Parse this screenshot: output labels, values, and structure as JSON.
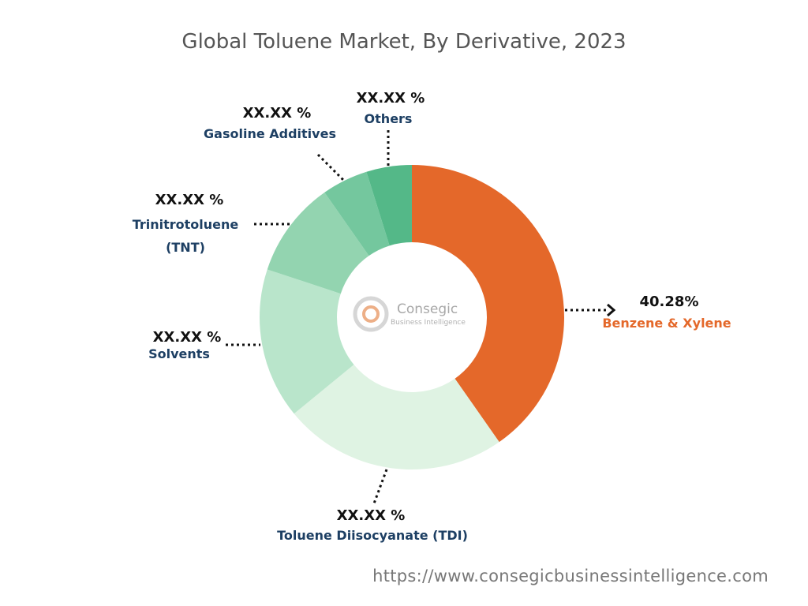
{
  "chart_data": {
    "type": "donut",
    "title": "Global Toluene Market, By Derivative, 2023",
    "categories": [
      "Benzene & Xylene",
      "Toluene Diisocyanate (TDI)",
      "Solvents",
      "Trinitrotoluene (TNT)",
      "Gasoline Additives",
      "Others"
    ],
    "values": [
      40.28,
      23.8,
      16,
      10.2,
      4.9,
      4.82
    ],
    "value_labels": [
      "40.28%",
      "XX.XX %",
      "XX.XX %",
      "XX.XX %",
      "XX.XX %",
      "XX.XX %"
    ],
    "colors": [
      "#e4682a",
      "#dff3e3",
      "#b9e5cb",
      "#93d4b0",
      "#74c79e",
      "#54b888"
    ],
    "watermark": {
      "name": "Consegic",
      "tagline": "Business Intelligence"
    },
    "source": "https://www.consegicbusinessintelligence.com"
  }
}
